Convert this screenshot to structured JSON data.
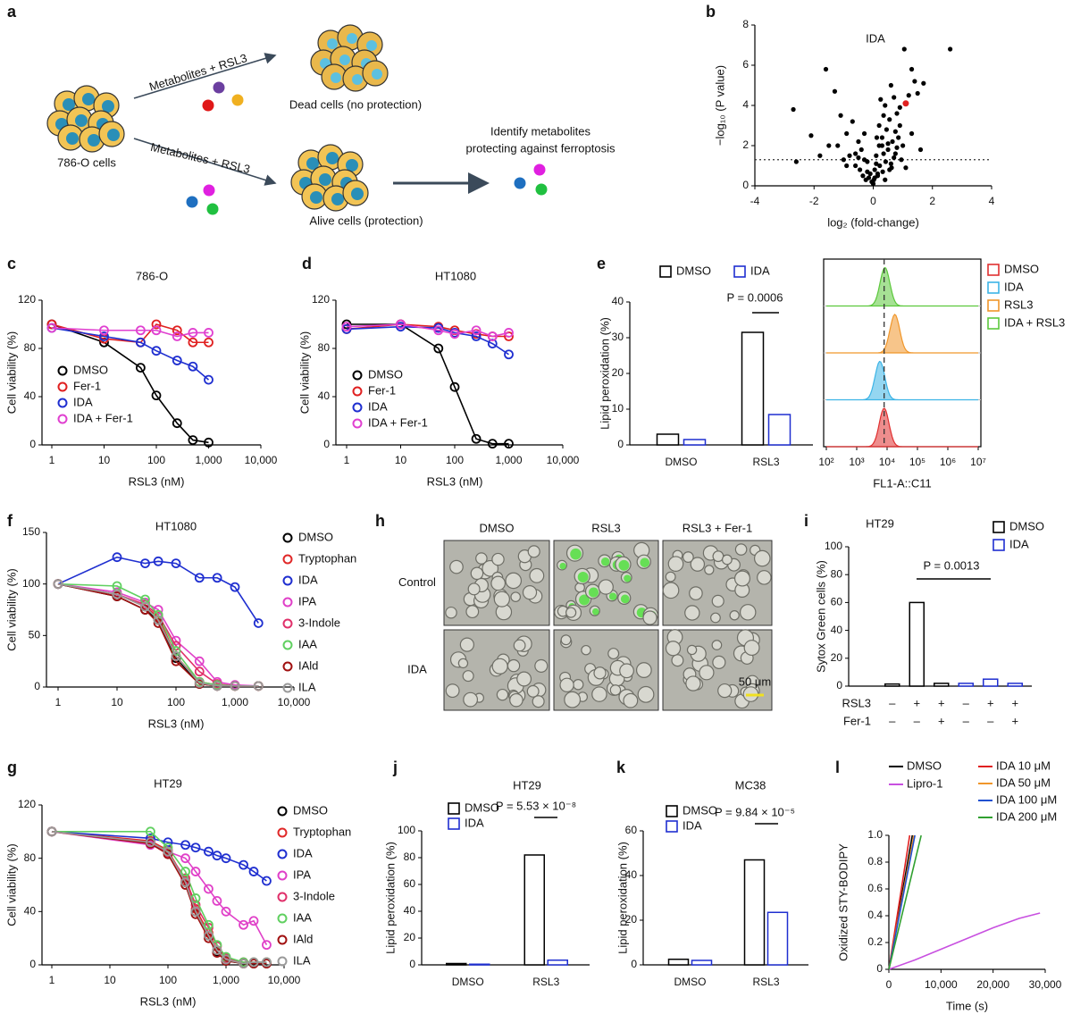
{
  "diagram": {
    "panel": "a",
    "labels": [
      "786-O cells",
      "Metabolites + RSL3",
      "Dead cells (no protection)",
      "Metabolites + RSL3",
      "Alive cells (protection)",
      "Identify metabolites",
      "protecting against ferroptosis"
    ]
  },
  "microscopy": {
    "panel": "h",
    "columns": [
      "DMSO",
      "RSL3",
      "RSL3 + Fer-1"
    ],
    "rows": [
      "Control",
      "IDA"
    ],
    "scale_bar": "50 μm"
  },
  "chart_data": [
    {
      "panel": "b",
      "type": "scatter",
      "xlabel": "log₂ (fold-change)",
      "ylabel": "−log₁₀ (P value)",
      "color": "#000000",
      "x": [
        -2.7,
        -2.6,
        -2.1,
        -1.6,
        -1.5,
        -1.3,
        -1.1,
        -0.9,
        -0.8,
        -0.7,
        -0.6,
        -0.5,
        -0.45,
        -0.4,
        -0.35,
        -0.3,
        -0.25,
        -0.2,
        -0.15,
        -0.1,
        -0.05,
        0,
        0.02,
        0.05,
        0.1,
        0.12,
        0.15,
        0.2,
        0.22,
        0.25,
        0.3,
        0.32,
        0.35,
        0.4,
        0.42,
        0.45,
        0.5,
        0.55,
        0.6,
        0.62,
        0.65,
        0.7,
        0.75,
        0.8,
        0.85,
        0.9,
        0.95,
        1.0,
        1.05,
        1.2,
        1.3,
        1.4,
        1.5,
        1.6,
        1.7,
        2.6,
        -1.8,
        -1.2,
        -0.9,
        -0.6,
        -0.3,
        0.1,
        0.3,
        0.5,
        0.7,
        0.9,
        1.1,
        1.3,
        0.15,
        0.4,
        0.6,
        0.8,
        0.2,
        -0.2,
        -0.5,
        -1.0,
        0.05,
        0.35,
        0.55,
        0.75
      ],
      "values": [
        3.8,
        1.2,
        2.5,
        5.8,
        2.0,
        4.7,
        3.5,
        2.6,
        1.5,
        3.2,
        1.0,
        2.2,
        0.8,
        1.8,
        0.5,
        2.6,
        0.3,
        1.2,
        0.4,
        0.6,
        0.2,
        0.1,
        0.3,
        0.8,
        1.5,
        2.4,
        0.5,
        3.0,
        1.0,
        4.3,
        2.0,
        0.7,
        3.5,
        4.0,
        1.2,
        2.8,
        1.8,
        3.3,
        5.0,
        0.9,
        2.2,
        4.4,
        1.6,
        3.6,
        2.4,
        3.0,
        1.3,
        2.0,
        6.8,
        4.5,
        5.8,
        5.2,
        4.6,
        1.8,
        5.1,
        6.8,
        1.5,
        2.0,
        1.0,
        1.6,
        1.3,
        1.1,
        2.4,
        2.1,
        1.4,
        3.9,
        0.9,
        2.6,
        0.6,
        0.3,
        1.1,
        1.9,
        2.0,
        0.7,
        1.4,
        1.3,
        0.4,
        1.6,
        0.8,
        2.7
      ],
      "highlight": {
        "label": "IDA",
        "x": 1.1,
        "y": 4.1,
        "color": "#e02020"
      },
      "threshold": 1.3,
      "xlim": [
        -4,
        4
      ],
      "xticks": [
        -4,
        -2,
        0,
        2,
        4
      ],
      "ylim": [
        0,
        8
      ],
      "yticks": [
        0,
        2,
        4,
        6,
        8
      ]
    },
    {
      "panel": "c",
      "type": "line",
      "markers": "open-circle",
      "xscale": "log",
      "title": "786-O",
      "xlabel": "RSL3 (nM)",
      "ylabel": "Cell viability (%)",
      "x": [
        1,
        10,
        50,
        100,
        250,
        500,
        1000
      ],
      "series": [
        {
          "name": "DMSO",
          "color": "#000000",
          "values": [
            100,
            85,
            64,
            41,
            18,
            4,
            2
          ]
        },
        {
          "name": "Fer-1",
          "color": "#e02020",
          "values": [
            100,
            88,
            85,
            100,
            95,
            85,
            85
          ]
        },
        {
          "name": "IDA",
          "color": "#1f2fd0",
          "values": [
            97,
            90,
            85,
            78,
            70,
            65,
            54
          ]
        },
        {
          "name": "IDA + Fer-1",
          "color": "#e040d0",
          "values": [
            97,
            95,
            95,
            95,
            90,
            93,
            93
          ]
        }
      ],
      "xlim": [
        1,
        10000
      ],
      "xticks": [
        1,
        10,
        100,
        {
          "value": 1000,
          "label": "1,000"
        },
        {
          "value": 10000,
          "label": "10,000"
        }
      ],
      "ylim": [
        0,
        120
      ],
      "yticks": [
        0,
        40,
        80,
        120
      ]
    },
    {
      "panel": "d",
      "type": "line",
      "markers": "open-circle",
      "xscale": "log",
      "title": "HT1080",
      "xlabel": "RSL3 (nM)",
      "ylabel": "Cell viability (%)",
      "x": [
        1,
        10,
        50,
        100,
        250,
        500,
        1000
      ],
      "series": [
        {
          "name": "DMSO",
          "color": "#000000",
          "values": [
            100,
            100,
            80,
            48,
            5,
            1,
            1
          ]
        },
        {
          "name": "Fer-1",
          "color": "#e02020",
          "values": [
            96,
            100,
            98,
            95,
            92,
            90,
            90
          ]
        },
        {
          "name": "IDA",
          "color": "#1f2fd0",
          "values": [
            96,
            98,
            97,
            93,
            90,
            84,
            75
          ]
        },
        {
          "name": "IDA + Fer-1",
          "color": "#e040d0",
          "values": [
            98,
            100,
            95,
            92,
            95,
            90,
            93
          ]
        }
      ],
      "xlim": [
        1,
        10000
      ],
      "xticks": [
        1,
        10,
        100,
        {
          "value": 1000,
          "label": "1,000"
        },
        {
          "value": 10000,
          "label": "10,000"
        }
      ],
      "ylim": [
        0,
        120
      ],
      "yticks": [
        0,
        40,
        80,
        120
      ]
    },
    {
      "panel": "e",
      "type": "bar",
      "ylabel": "Lipid peroxidation (%)",
      "categories": [
        "DMSO",
        "RSL3"
      ],
      "series": [
        {
          "name": "DMSO",
          "color": "#000000",
          "values": [
            3,
            31.5
          ]
        },
        {
          "name": "IDA",
          "color": "#1f2fd0",
          "values": [
            1.5,
            8.5
          ]
        }
      ],
      "annotation": "P = 0.0006",
      "ylim": [
        0,
        40
      ],
      "yticks": [
        0,
        10,
        20,
        30,
        40
      ]
    },
    {
      "type": "density",
      "xscale": "log",
      "xlabel": "FL1-A::C11",
      "series": [
        {
          "name": "DMSO",
          "color": "#e03030",
          "peak": 8000
        },
        {
          "name": "IDA",
          "color": "#3cb4e6",
          "peak": 5800
        },
        {
          "name": "RSL3",
          "color": "#f0962a",
          "peak": 18000
        },
        {
          "name": "IDA + RSL3",
          "color": "#5cc83c",
          "peak": 8500
        }
      ],
      "reference": 8000,
      "xlim": [
        100,
        10000000
      ],
      "xticks": [
        {
          "value": 100,
          "label": "10²"
        },
        {
          "value": 1000,
          "label": "10³"
        },
        {
          "value": 10000,
          "label": "10⁴"
        },
        {
          "value": 100000,
          "label": "10⁵"
        },
        {
          "value": 1000000,
          "label": "10⁶"
        },
        {
          "value": 10000000,
          "label": "10⁷"
        }
      ]
    },
    {
      "panel": "f",
      "type": "line",
      "markers": "open-circle",
      "xscale": "log",
      "title": "HT1080",
      "xlabel": "RSL3 (nM)",
      "ylabel": "Cell viability (%)",
      "x": [
        1,
        10,
        30,
        50,
        100,
        250,
        500,
        1000,
        2500
      ],
      "series": [
        {
          "name": "DMSO",
          "color": "#000000",
          "values": [
            100,
            88,
            75,
            65,
            28,
            3,
            1,
            1,
            1
          ]
        },
        {
          "name": "Tryptophan",
          "color": "#e02828",
          "values": [
            100,
            90,
            78,
            68,
            30,
            5,
            2,
            1,
            1
          ]
        },
        {
          "name": "IDA",
          "color": "#1f2fd0",
          "values": [
            100,
            126,
            120,
            122,
            120,
            106,
            106,
            97,
            62
          ]
        },
        {
          "name": "IPA",
          "color": "#e040c8",
          "values": [
            100,
            92,
            82,
            75,
            45,
            25,
            5,
            2,
            1
          ]
        },
        {
          "name": "3-Indole",
          "color": "#e0306a",
          "values": [
            100,
            90,
            80,
            70,
            40,
            15,
            3,
            1,
            1
          ]
        },
        {
          "name": "IAA",
          "color": "#60d060",
          "values": [
            100,
            98,
            85,
            70,
            35,
            5,
            2,
            1,
            1
          ]
        },
        {
          "name": "IAld",
          "color": "#a01010",
          "values": [
            100,
            88,
            75,
            62,
            25,
            3,
            1,
            1,
            1
          ]
        },
        {
          "name": "ILA",
          "color": "#9a9a9a",
          "values": [
            100,
            90,
            78,
            65,
            30,
            4,
            1,
            1,
            1
          ]
        }
      ],
      "xlim": [
        1,
        10000
      ],
      "xticks": [
        1,
        10,
        100,
        {
          "value": 1000,
          "label": "1,000"
        },
        {
          "value": 10000,
          "label": "10,000"
        }
      ],
      "ylim": [
        0,
        150
      ],
      "yticks": [
        0,
        50,
        100,
        150
      ]
    },
    {
      "panel": "g",
      "type": "line",
      "markers": "open-circle",
      "xscale": "log",
      "title": "HT29",
      "xlabel": "RSL3 (nM)",
      "ylabel": "Cell viability (%)",
      "x": [
        1,
        50,
        100,
        200,
        300,
        500,
        700,
        1000,
        2000,
        3000,
        5000
      ],
      "series": [
        {
          "name": "DMSO",
          "color": "#000000",
          "values": [
            100,
            92,
            85,
            62,
            40,
            22,
            10,
            3,
            1,
            1,
            1
          ]
        },
        {
          "name": "Tryptophan",
          "color": "#e02828",
          "values": [
            100,
            93,
            86,
            63,
            42,
            24,
            11,
            4,
            1,
            1,
            1
          ]
        },
        {
          "name": "IDA",
          "color": "#1f2fd0",
          "values": [
            100,
            95,
            92,
            90,
            88,
            85,
            82,
            80,
            75,
            70,
            63
          ]
        },
        {
          "name": "IPA",
          "color": "#e040c8",
          "values": [
            100,
            90,
            85,
            80,
            70,
            57,
            48,
            40,
            30,
            33,
            15
          ]
        },
        {
          "name": "3-Indole",
          "color": "#e0306a",
          "values": [
            100,
            91,
            84,
            65,
            45,
            28,
            14,
            5,
            2,
            2,
            2
          ]
        },
        {
          "name": "IAA",
          "color": "#60d060",
          "values": [
            100,
            100,
            88,
            70,
            50,
            30,
            15,
            6,
            2,
            2,
            2
          ]
        },
        {
          "name": "IAld",
          "color": "#a01010",
          "values": [
            100,
            91,
            83,
            60,
            38,
            20,
            9,
            3,
            1,
            1,
            1
          ]
        },
        {
          "name": "ILA",
          "color": "#9a9a9a",
          "values": [
            100,
            92,
            85,
            62,
            40,
            22,
            11,
            4,
            1,
            2,
            2
          ]
        }
      ],
      "xlim": [
        1,
        10000
      ],
      "xticks": [
        1,
        10,
        100,
        {
          "value": 1000,
          "label": "1,000"
        },
        {
          "value": 10000,
          "label": "10,000"
        }
      ],
      "ylim": [
        0,
        120
      ],
      "yticks": [
        0,
        40,
        80,
        120
      ]
    },
    {
      "panel": "i",
      "type": "bar",
      "title": "HT29",
      "ylabel": "Sytox Green cells (%)",
      "conditions": [
        {
          "name": "RSL3",
          "signs": [
            "–",
            "+",
            "+",
            "–",
            "+",
            "+"
          ]
        },
        {
          "name": "Fer-1",
          "signs": [
            "–",
            "–",
            "+",
            "–",
            "–",
            "+"
          ]
        }
      ],
      "series": [
        {
          "name": "DMSO",
          "color": "#000000",
          "values": [
            1.5,
            60,
            2
          ]
        },
        {
          "name": "IDA",
          "color": "#1f2fd0",
          "values": [
            2,
            5,
            2
          ]
        }
      ],
      "annotation": "P = 0.0013",
      "ylim": [
        0,
        100
      ],
      "yticks": [
        0,
        20,
        40,
        60,
        80,
        100
      ]
    },
    {
      "panel": "j",
      "type": "bar",
      "title": "HT29",
      "ylabel": "Lipid peroxidation (%)",
      "categories": [
        "DMSO",
        "RSL3"
      ],
      "series": [
        {
          "name": "DMSO",
          "color": "#000000",
          "values": [
            1,
            82
          ]
        },
        {
          "name": "IDA",
          "color": "#1f2fd0",
          "values": [
            0.5,
            3.5
          ]
        }
      ],
      "annotation": "P = 5.53 × 10⁻⁸",
      "ylim": [
        0,
        100
      ],
      "yticks": [
        0,
        20,
        40,
        60,
        80,
        100
      ]
    },
    {
      "panel": "k",
      "type": "bar",
      "title": "MC38",
      "ylabel": "Lipid peroxidation (%)",
      "categories": [
        "DMSO",
        "RSL3"
      ],
      "series": [
        {
          "name": "DMSO",
          "color": "#000000",
          "values": [
            2.5,
            47
          ]
        },
        {
          "name": "IDA",
          "color": "#1f2fd0",
          "values": [
            2,
            23.5
          ]
        }
      ],
      "annotation": "P = 9.84 × 10⁻⁵",
      "ylim": [
        0,
        60
      ],
      "yticks": [
        0,
        20,
        40,
        60
      ]
    },
    {
      "panel": "l",
      "type": "line",
      "xlabel": "Time (s)",
      "ylabel": "Oxidized STY-BODIPY",
      "series": [
        {
          "name": "DMSO",
          "color": "#000000",
          "x": [
            0,
            4500
          ],
          "values": [
            0,
            1
          ]
        },
        {
          "name": "Lipro-1",
          "color": "#c850e0",
          "x": [
            0,
            5000,
            10000,
            15000,
            20000,
            25000,
            29000
          ],
          "values": [
            0,
            0.07,
            0.15,
            0.23,
            0.31,
            0.38,
            0.42
          ]
        },
        {
          "name": "IDA 10 μM",
          "color": "#e02020",
          "x": [
            0,
            4000
          ],
          "values": [
            0,
            1
          ]
        },
        {
          "name": "IDA 50 μM",
          "color": "#f0962a",
          "x": [
            0,
            4800
          ],
          "values": [
            0,
            1
          ]
        },
        {
          "name": "IDA 100 μM",
          "color": "#2050d0",
          "x": [
            0,
            5000
          ],
          "values": [
            0,
            1
          ]
        },
        {
          "name": "IDA 200 μM",
          "color": "#30a030",
          "x": [
            0,
            6200
          ],
          "values": [
            0,
            1
          ]
        }
      ],
      "xlim": [
        0,
        30000
      ],
      "xticks": [
        0,
        {
          "value": 10000,
          "label": "10,000"
        },
        {
          "value": 20000,
          "label": "20,000"
        },
        {
          "value": 30000,
          "label": "30,000"
        }
      ],
      "ylim": [
        0,
        1
      ],
      "yticks": [
        0,
        0.2,
        0.4,
        0.6,
        0.8,
        {
          "value": 1,
          "label": "1.0"
        }
      ]
    }
  ]
}
